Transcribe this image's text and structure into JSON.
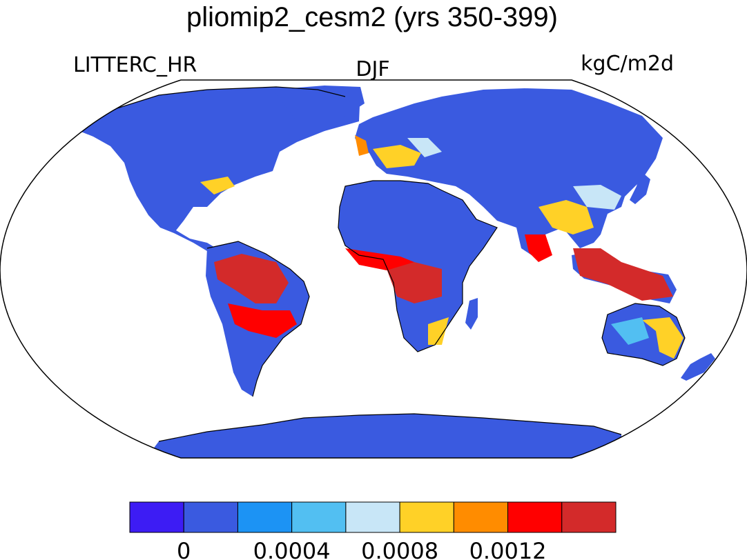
{
  "title": "pliomip2_cesm2 (yrs 350-399)",
  "left_label": "LITTERC_HR",
  "center_label": "DJF",
  "right_label": "kgC/m2d",
  "colorbar": {
    "colors": [
      "#3d1cf4",
      "#3a5ae0",
      "#1c93f4",
      "#52bff2",
      "#c8e6f7",
      "#ffd127",
      "#ff8c00",
      "#ff0000",
      "#d32a2a"
    ],
    "tick_labels": [
      "0",
      "0.0004",
      "0.0008",
      "0.0012"
    ]
  },
  "map": {
    "land_color": "#3a5ae0",
    "ocean_color": "#ffffff",
    "coast_color": "#000000"
  }
}
